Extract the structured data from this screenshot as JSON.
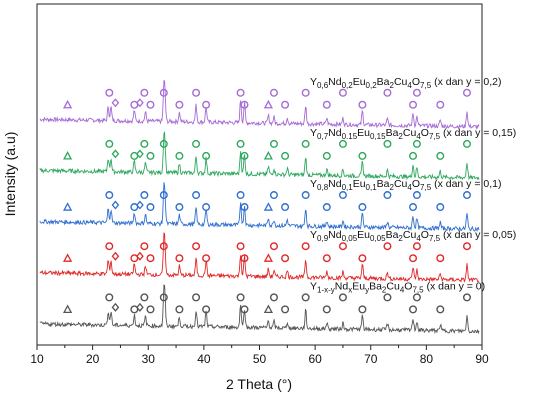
{
  "chart_data": {
    "type": "line",
    "xlabel": "2 Theta (°)",
    "ylabel": "Intensity (a.u)",
    "xlim": [
      10,
      90
    ],
    "xticks": [
      "10",
      "20",
      "30",
      "40",
      "50",
      "60",
      "70",
      "80",
      "90"
    ],
    "yticks_shown": false,
    "grid": false,
    "stacked_offset": true,
    "series": [
      {
        "name": "Y0,6Nd0,2Eu0,2Ba2Cu4O7,5 (x dan y = 0,2)",
        "label_parts": [
          [
            "Y",
            ""
          ],
          [
            "0,6",
            "sub"
          ],
          [
            "Nd",
            ""
          ],
          [
            "0,2",
            "sub"
          ],
          [
            "Eu",
            ""
          ],
          [
            "0,2",
            "sub"
          ],
          [
            "Ba",
            ""
          ],
          [
            "2",
            "sub"
          ],
          [
            "Cu",
            ""
          ],
          [
            "4",
            "sub"
          ],
          [
            "O",
            ""
          ],
          [
            "7,5",
            "sub"
          ],
          [
            " (x dan y = 0,2)",
            ""
          ]
        ],
        "color": "#a56bd6",
        "baseline": 0.64
      },
      {
        "name": "Y0,7Nd0.15Eu0,15Ba2Cu4O7,5 (x dan y = 0,15)",
        "label_parts": [
          [
            "Y",
            ""
          ],
          [
            "0,7",
            "sub"
          ],
          [
            "Nd",
            ""
          ],
          [
            "0.15",
            "sub"
          ],
          [
            "Eu",
            ""
          ],
          [
            "0,15",
            "sub"
          ],
          [
            "Ba",
            ""
          ],
          [
            "2",
            "sub"
          ],
          [
            "Cu",
            ""
          ],
          [
            "4",
            "sub"
          ],
          [
            "O",
            ""
          ],
          [
            "7,5",
            "sub"
          ],
          [
            " (x dan y = 0,15)",
            ""
          ]
        ],
        "color": "#2ea85e",
        "baseline": 0.49
      },
      {
        "name": "Y0,8Nd0,1Eu0,1Ba2Cu4O7,5 (x dan y = 0,1)",
        "label_parts": [
          [
            "Y",
            ""
          ],
          [
            "0,8",
            "sub"
          ],
          [
            "Nd",
            ""
          ],
          [
            "0,1",
            "sub"
          ],
          [
            "Eu",
            ""
          ],
          [
            "0,1",
            "sub"
          ],
          [
            "Ba",
            ""
          ],
          [
            "2",
            "sub"
          ],
          [
            "Cu",
            ""
          ],
          [
            "4",
            "sub"
          ],
          [
            "O",
            ""
          ],
          [
            "7,5",
            "sub"
          ],
          [
            " (x dan y = 0,1)",
            ""
          ]
        ],
        "color": "#2f6fd0",
        "baseline": 0.34
      },
      {
        "name": "Y0,9Nd0,05Eu0,05Ba2Cu4O7,5 (x dan y = 0,05)",
        "label_parts": [
          [
            "Y",
            ""
          ],
          [
            "0,9",
            "sub"
          ],
          [
            "Nd",
            ""
          ],
          [
            "0,05",
            "sub"
          ],
          [
            "Eu",
            ""
          ],
          [
            "0,05",
            "sub"
          ],
          [
            "Ba",
            ""
          ],
          [
            "2",
            "sub"
          ],
          [
            "Cu",
            ""
          ],
          [
            "4",
            "sub"
          ],
          [
            "O",
            ""
          ],
          [
            "7,5",
            "sub"
          ],
          [
            " (x dan y = 0,05)",
            ""
          ]
        ],
        "color": "#e02828",
        "baseline": 0.19
      },
      {
        "name": "Y1-x-yNdxEuyBa2Cu4O7,5 (x dan y = 0)",
        "label_parts": [
          [
            "Y",
            ""
          ],
          [
            "1-x-y",
            "sub"
          ],
          [
            "Nd",
            ""
          ],
          [
            "x",
            "sub"
          ],
          [
            "Eu",
            ""
          ],
          [
            "y",
            "sub"
          ],
          [
            "Ba",
            ""
          ],
          [
            "2",
            "sub"
          ],
          [
            "Cu",
            ""
          ],
          [
            "4",
            "sub"
          ],
          [
            "O",
            ""
          ],
          [
            "7,5",
            "sub"
          ],
          [
            " (x dan y = 0)",
            ""
          ]
        ],
        "color": "#555555",
        "baseline": 0.04
      }
    ],
    "peaks": [
      {
        "x": 22.8,
        "h": 0.45
      },
      {
        "x": 23.3,
        "h": 0.45
      },
      {
        "x": 27.5,
        "h": 0.35
      },
      {
        "x": 29.5,
        "h": 0.3
      },
      {
        "x": 32.8,
        "h": 1.0
      },
      {
        "x": 33.0,
        "h": 0.8
      },
      {
        "x": 35.6,
        "h": 0.3
      },
      {
        "x": 38.6,
        "h": 0.55
      },
      {
        "x": 40.4,
        "h": 0.5
      },
      {
        "x": 46.6,
        "h": 0.75
      },
      {
        "x": 47.3,
        "h": 0.65
      },
      {
        "x": 51.6,
        "h": 0.25
      },
      {
        "x": 52.6,
        "h": 0.2
      },
      {
        "x": 55.0,
        "h": 0.2
      },
      {
        "x": 58.3,
        "h": 0.6
      },
      {
        "x": 62.1,
        "h": 0.2
      },
      {
        "x": 65.0,
        "h": 0.2
      },
      {
        "x": 68.5,
        "h": 0.45
      },
      {
        "x": 73.0,
        "h": 0.2
      },
      {
        "x": 77.6,
        "h": 0.4
      },
      {
        "x": 78.3,
        "h": 0.3
      },
      {
        "x": 82.5,
        "h": 0.2
      },
      {
        "x": 87.3,
        "h": 0.5
      }
    ],
    "circle_markers": [
      23.0,
      27.5,
      29.3,
      30.4,
      32.8,
      35.6,
      38.6,
      40.4,
      46.6,
      47.3,
      52.6,
      54.6,
      58.3,
      62.1,
      65.0,
      68.5,
      73.0,
      77.6,
      78.3,
      82.5,
      87.3
    ],
    "diamond_markers": [
      24.1,
      28.5
    ],
    "triangle_markers": [
      15.5,
      51.6
    ]
  }
}
